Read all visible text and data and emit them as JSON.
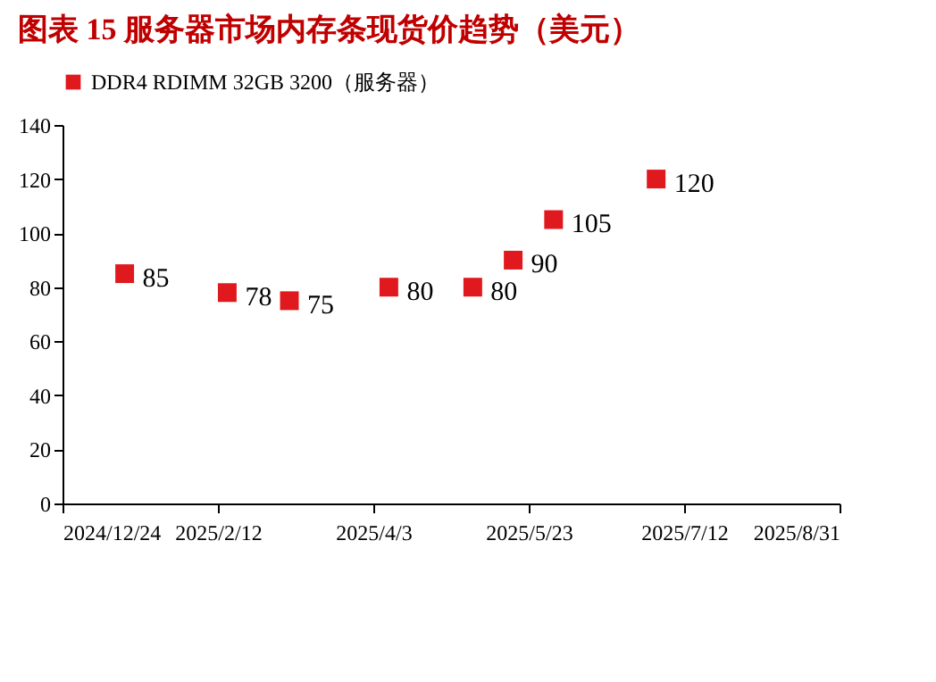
{
  "chart_data": {
    "type": "scatter",
    "title": "图表 15   服务器市场内存条现货价趋势（美元）",
    "x": [
      "2025-01-13",
      "2025-02-15",
      "2025-03-07",
      "2025-04-08",
      "2025-05-05",
      "2025-05-18",
      "2025-05-31",
      "2025-07-03"
    ],
    "series": [
      {
        "name": "DDR4 RDIMM 32GB 3200（服务器）",
        "color": "#e0191f",
        "values": [
          85,
          78,
          75,
          80,
          80,
          90,
          105,
          120
        ]
      }
    ],
    "xlim": [
      "2024-12-24",
      "2025-08-31"
    ],
    "xticks": [
      {
        "value": "2024-12-24",
        "label": "2024/12/24"
      },
      {
        "value": "2025-02-12",
        "label": "2025/2/12"
      },
      {
        "value": "2025-04-03",
        "label": "2025/4/3"
      },
      {
        "value": "2025-05-23",
        "label": "2025/5/23"
      },
      {
        "value": "2025-07-12",
        "label": "2025/7/12"
      },
      {
        "value": "2025-08-31",
        "label": "2025/8/31"
      }
    ],
    "ylim": [
      0,
      140
    ],
    "yticks": [
      0,
      20,
      40,
      60,
      80,
      100,
      120,
      140
    ],
    "marker": "square",
    "legend": "top",
    "data_labels": true,
    "grid": false
  }
}
